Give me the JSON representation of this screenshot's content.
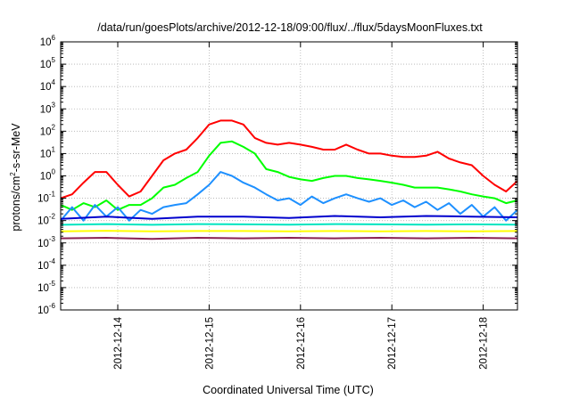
{
  "chart_data": {
    "type": "line",
    "title": "/data/run/goesPlots/archive/2012-12-18/09:00/flux/../flux/5daysMoonFluxes.txt",
    "xlabel": "Coordinated Universal Time (UTC)",
    "ylabel": {
      "prefix": "protons/cm",
      "sup": "2",
      "suffix": "-s-sr-MeV"
    },
    "y_scale": "log",
    "ylim": [
      1e-06,
      1000000.0
    ],
    "xlim": [
      "2012-12-13 09:00",
      "2012-12-18 09:00"
    ],
    "grid": true,
    "y_ticks": [
      {
        "base": "10",
        "exp": "-6"
      },
      {
        "base": "10",
        "exp": "-5"
      },
      {
        "base": "10",
        "exp": "-4"
      },
      {
        "base": "10",
        "exp": "-3"
      },
      {
        "base": "10",
        "exp": "-2"
      },
      {
        "base": "10",
        "exp": "-1"
      },
      {
        "base": "10",
        "exp": "0"
      },
      {
        "base": "10",
        "exp": "1"
      },
      {
        "base": "10",
        "exp": "2"
      },
      {
        "base": "10",
        "exp": "3"
      },
      {
        "base": "10",
        "exp": "4"
      },
      {
        "base": "10",
        "exp": "5"
      },
      {
        "base": "10",
        "exp": "6"
      }
    ],
    "x_ticks": [
      "2012-12-14",
      "2012-12-15",
      "2012-12-16",
      "2012-12-17",
      "2012-12-18"
    ],
    "series": [
      {
        "color": "#ff0000",
        "x": [
          "2012-12-13 09:00",
          "2012-12-13 12:00",
          "2012-12-13 15:00",
          "2012-12-13 18:00",
          "2012-12-13 21:00",
          "2012-12-14 00:00",
          "2012-12-14 03:00",
          "2012-12-14 06:00",
          "2012-12-14 09:00",
          "2012-12-14 12:00",
          "2012-12-14 15:00",
          "2012-12-14 18:00",
          "2012-12-14 21:00",
          "2012-12-15 00:00",
          "2012-12-15 03:00",
          "2012-12-15 06:00",
          "2012-12-15 09:00",
          "2012-12-15 12:00",
          "2012-12-15 15:00",
          "2012-12-15 18:00",
          "2012-12-15 21:00",
          "2012-12-16 00:00",
          "2012-12-16 03:00",
          "2012-12-16 06:00",
          "2012-12-16 09:00",
          "2012-12-16 12:00",
          "2012-12-16 15:00",
          "2012-12-16 18:00",
          "2012-12-16 21:00",
          "2012-12-17 00:00",
          "2012-12-17 03:00",
          "2012-12-17 06:00",
          "2012-12-17 09:00",
          "2012-12-17 12:00",
          "2012-12-17 15:00",
          "2012-12-17 18:00",
          "2012-12-17 21:00",
          "2012-12-18 00:00",
          "2012-12-18 03:00",
          "2012-12-18 06:00",
          "2012-12-18 09:00"
        ],
        "y": [
          0.1,
          0.15,
          0.5,
          1.5,
          1.5,
          0.4,
          0.12,
          0.2,
          1.0,
          5,
          10,
          15,
          50,
          200,
          300,
          300,
          200,
          50,
          30,
          25,
          30,
          25,
          20,
          15,
          15,
          25,
          15,
          10,
          10,
          8,
          7,
          7,
          8,
          12,
          6,
          4,
          3,
          1,
          0.4,
          0.2,
          0.6
        ]
      },
      {
        "color": "#00ff00",
        "x": [
          "2012-12-13 09:00",
          "2012-12-13 12:00",
          "2012-12-13 15:00",
          "2012-12-13 18:00",
          "2012-12-13 21:00",
          "2012-12-14 00:00",
          "2012-12-14 03:00",
          "2012-12-14 06:00",
          "2012-12-14 09:00",
          "2012-12-14 12:00",
          "2012-12-14 15:00",
          "2012-12-14 18:00",
          "2012-12-14 21:00",
          "2012-12-15 00:00",
          "2012-12-15 03:00",
          "2012-12-15 06:00",
          "2012-12-15 09:00",
          "2012-12-15 12:00",
          "2012-12-15 15:00",
          "2012-12-15 18:00",
          "2012-12-15 21:00",
          "2012-12-16 00:00",
          "2012-12-16 03:00",
          "2012-12-16 06:00",
          "2012-12-16 09:00",
          "2012-12-16 12:00",
          "2012-12-16 15:00",
          "2012-12-16 18:00",
          "2012-12-16 21:00",
          "2012-12-17 00:00",
          "2012-12-17 03:00",
          "2012-12-17 06:00",
          "2012-12-17 09:00",
          "2012-12-17 12:00",
          "2012-12-17 15:00",
          "2012-12-17 18:00",
          "2012-12-17 21:00",
          "2012-12-18 00:00",
          "2012-12-18 03:00",
          "2012-12-18 06:00",
          "2012-12-18 09:00"
        ],
        "y": [
          0.05,
          0.03,
          0.06,
          0.04,
          0.08,
          0.03,
          0.05,
          0.05,
          0.1,
          0.3,
          0.4,
          0.8,
          1.5,
          8,
          30,
          35,
          20,
          10,
          2,
          1.5,
          0.9,
          0.7,
          0.6,
          0.8,
          1.0,
          1.0,
          0.8,
          0.7,
          0.6,
          0.5,
          0.4,
          0.3,
          0.3,
          0.3,
          0.25,
          0.2,
          0.15,
          0.12,
          0.1,
          0.06,
          0.08
        ]
      },
      {
        "color": "#1e90ff",
        "x": [
          "2012-12-13 09:00",
          "2012-12-13 12:00",
          "2012-12-13 15:00",
          "2012-12-13 18:00",
          "2012-12-13 21:00",
          "2012-12-14 00:00",
          "2012-12-14 03:00",
          "2012-12-14 06:00",
          "2012-12-14 09:00",
          "2012-12-14 12:00",
          "2012-12-14 15:00",
          "2012-12-14 18:00",
          "2012-12-14 21:00",
          "2012-12-15 00:00",
          "2012-12-15 03:00",
          "2012-12-15 06:00",
          "2012-12-15 09:00",
          "2012-12-15 12:00",
          "2012-12-15 15:00",
          "2012-12-15 18:00",
          "2012-12-15 21:00",
          "2012-12-16 00:00",
          "2012-12-16 03:00",
          "2012-12-16 06:00",
          "2012-12-16 09:00",
          "2012-12-16 12:00",
          "2012-12-16 15:00",
          "2012-12-16 18:00",
          "2012-12-16 21:00",
          "2012-12-17 00:00",
          "2012-12-17 03:00",
          "2012-12-17 06:00",
          "2012-12-17 09:00",
          "2012-12-17 12:00",
          "2012-12-17 15:00",
          "2012-12-17 18:00",
          "2012-12-17 21:00",
          "2012-12-18 00:00",
          "2012-12-18 03:00",
          "2012-12-18 06:00",
          "2012-12-18 09:00"
        ],
        "y": [
          0.01,
          0.04,
          0.01,
          0.05,
          0.015,
          0.04,
          0.01,
          0.03,
          0.02,
          0.04,
          0.05,
          0.06,
          0.15,
          0.4,
          1.5,
          1.0,
          0.5,
          0.3,
          0.15,
          0.08,
          0.1,
          0.05,
          0.12,
          0.06,
          0.1,
          0.15,
          0.1,
          0.07,
          0.1,
          0.05,
          0.08,
          0.04,
          0.07,
          0.03,
          0.06,
          0.02,
          0.05,
          0.015,
          0.04,
          0.01,
          0.03
        ]
      },
      {
        "color": "#0000cd",
        "x": [
          "2012-12-13 09:00",
          "2012-12-13 21:00",
          "2012-12-14 09:00",
          "2012-12-14 21:00",
          "2012-12-15 09:00",
          "2012-12-15 21:00",
          "2012-12-16 09:00",
          "2012-12-16 21:00",
          "2012-12-17 09:00",
          "2012-12-17 21:00",
          "2012-12-18 09:00"
        ],
        "y": [
          0.012,
          0.015,
          0.012,
          0.015,
          0.015,
          0.013,
          0.016,
          0.014,
          0.016,
          0.015,
          0.014
        ]
      },
      {
        "color": "#00e5c0",
        "x": [
          "2012-12-13 09:00",
          "2012-12-13 21:00",
          "2012-12-14 09:00",
          "2012-12-14 21:00",
          "2012-12-15 09:00",
          "2012-12-15 21:00",
          "2012-12-16 09:00",
          "2012-12-16 21:00",
          "2012-12-17 09:00",
          "2012-12-17 21:00",
          "2012-12-18 09:00"
        ],
        "y": [
          0.0065,
          0.007,
          0.0065,
          0.007,
          0.0068,
          0.0066,
          0.007,
          0.0068,
          0.0066,
          0.0068,
          0.0066
        ]
      },
      {
        "color": "#ffff00",
        "x": [
          "2012-12-13 09:00",
          "2012-12-13 21:00",
          "2012-12-14 09:00",
          "2012-12-14 21:00",
          "2012-12-15 09:00",
          "2012-12-15 21:00",
          "2012-12-16 09:00",
          "2012-12-16 21:00",
          "2012-12-17 09:00",
          "2012-12-17 21:00",
          "2012-12-18 09:00"
        ],
        "y": [
          0.0033,
          0.0035,
          0.0033,
          0.0034,
          0.0034,
          0.0033,
          0.0034,
          0.0033,
          0.0034,
          0.0033,
          0.0034
        ]
      },
      {
        "color": "#8b2252",
        "x": [
          "2012-12-13 09:00",
          "2012-12-13 21:00",
          "2012-12-14 09:00",
          "2012-12-14 21:00",
          "2012-12-15 09:00",
          "2012-12-15 21:00",
          "2012-12-16 09:00",
          "2012-12-16 21:00",
          "2012-12-17 09:00",
          "2012-12-17 21:00",
          "2012-12-18 09:00"
        ],
        "y": [
          0.0016,
          0.0017,
          0.0015,
          0.0017,
          0.0016,
          0.0017,
          0.0016,
          0.0017,
          0.0016,
          0.0017,
          0.0016
        ]
      }
    ]
  }
}
